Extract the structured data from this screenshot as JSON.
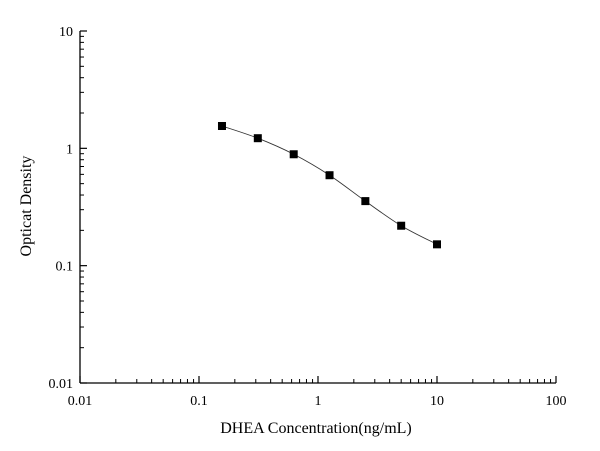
{
  "chart_data": {
    "type": "scatter",
    "title": "",
    "xlabel": "DHEA Concentration(ng/mL)",
    "ylabel": "Opticat Density",
    "x_scale": "log",
    "y_scale": "log",
    "xlim": [
      0.01,
      100
    ],
    "ylim": [
      0.01,
      10
    ],
    "x_ticks": [
      0.01,
      0.1,
      1,
      10,
      100
    ],
    "x_tick_labels": [
      "0.01",
      "0.1",
      "1",
      "10",
      "100"
    ],
    "y_ticks": [
      0.01,
      0.1,
      1,
      10
    ],
    "y_tick_labels": [
      "0.01",
      "0.1",
      "1",
      "10"
    ],
    "grid": false,
    "legend": "none",
    "series": [
      {
        "marker": "square",
        "line": "smooth",
        "color": "#000000",
        "x": [
          0.156,
          0.312,
          0.625,
          1.25,
          2.5,
          5,
          10
        ],
        "y": [
          1.55,
          1.22,
          0.89,
          0.59,
          0.355,
          0.219,
          0.152
        ]
      }
    ]
  }
}
